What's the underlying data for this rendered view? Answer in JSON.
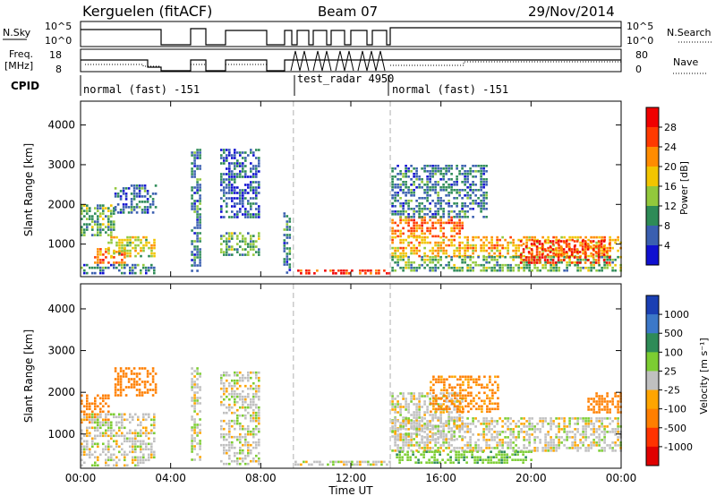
{
  "header": {
    "station": "Kerguelen (fitACF)",
    "beam": "Beam 07",
    "date": "29/Nov/2014"
  },
  "colors": {
    "line": "#000000",
    "frame": "#000000",
    "dashed": "#b0b0b0"
  },
  "nsky_panel": {
    "left_label": "N.Sky",
    "left_ticks": [
      "10^5",
      "10^0"
    ],
    "right_label": "N.Search",
    "right_ticks": [
      "10^5",
      "10^0"
    ]
  },
  "freq_panel": {
    "left_label_line1": "Freq.",
    "left_label_line2": "[MHz]",
    "left_ticks": [
      "18",
      "8"
    ],
    "right_label": "Nave",
    "right_ticks": [
      "80",
      "0"
    ]
  },
  "cpid": {
    "label": "CPID",
    "segments": [
      {
        "start_h": 0.0,
        "end_h": 9.5,
        "text": "normal (fast) -151"
      },
      {
        "start_h": 9.5,
        "end_h": 13.75,
        "text": "test_radar 4950"
      },
      {
        "start_h": 13.75,
        "end_h": 24.0,
        "text": "normal (fast) -151"
      }
    ]
  },
  "power_panel": {
    "ylabel": "Slant Range [km]",
    "yticks": [
      "4000",
      "3000",
      "2000",
      "1000"
    ],
    "colorbar_label": "Power [dB]",
    "colorbar_ticks": [
      "28",
      "24",
      "20",
      "16",
      "12",
      "8",
      "4"
    ],
    "colorbar_colors": [
      "#f00000",
      "#ff3a00",
      "#ff8c00",
      "#f2c500",
      "#92c83c",
      "#2e8b57",
      "#3a5fb0",
      "#1010d0"
    ]
  },
  "velocity_panel": {
    "ylabel": "Slant Range [km]",
    "yticks": [
      "4000",
      "3000",
      "2000",
      "1000"
    ],
    "colorbar_label": "Velocity [m s⁻¹]",
    "colorbar_ticks": [
      "1000",
      "500",
      "100",
      "25",
      "-25",
      "-100",
      "-500",
      "-1000"
    ],
    "colorbar_colors": [
      "#1a3fb3",
      "#3c78c8",
      "#2e8b57",
      "#7ccd32",
      "#c0c0c0",
      "#ffa500",
      "#ff7f00",
      "#ff3300",
      "#e00000"
    ]
  },
  "x_axis": {
    "label": "Time UT",
    "ticks": [
      "00:00",
      "04:00",
      "08:00",
      "12:00",
      "16:00",
      "20:00",
      "00:00"
    ]
  },
  "chart_data": {
    "type": "heatmap",
    "title": "Kerguelen (fitACF) Beam 07 29/Nov/2014",
    "xlabel": "Time UT",
    "ylabel": "Slant Range [km]",
    "xlim_hours": [
      0,
      24
    ],
    "ylim_km": [
      180,
      4600
    ],
    "dashed_lines_hours": [
      9.45,
      13.75
    ],
    "power_echoes": [
      {
        "t0": 0.0,
        "t1": 1.5,
        "r0": 1200,
        "r1": 2000,
        "db": 12
      },
      {
        "t0": 1.5,
        "t1": 3.3,
        "r0": 1800,
        "r1": 2500,
        "db": 8
      },
      {
        "t0": 0.6,
        "t1": 2.0,
        "r0": 550,
        "r1": 900,
        "db": 24
      },
      {
        "t0": 1.2,
        "t1": 3.3,
        "r0": 700,
        "r1": 1200,
        "db": 16
      },
      {
        "t0": 0.0,
        "t1": 3.3,
        "r0": 250,
        "r1": 500,
        "db": 8
      },
      {
        "t0": 4.9,
        "t1": 5.3,
        "r0": 300,
        "r1": 3400,
        "db": 8
      },
      {
        "t0": 6.2,
        "t1": 7.9,
        "r0": 700,
        "r1": 1300,
        "db": 12
      },
      {
        "t0": 6.2,
        "t1": 7.9,
        "r0": 1700,
        "r1": 3400,
        "db": 6
      },
      {
        "t0": 9.0,
        "t1": 9.3,
        "r0": 300,
        "r1": 1800,
        "db": 8
      },
      {
        "t0": 9.5,
        "t1": 13.7,
        "r0": 280,
        "r1": 360,
        "db": 28
      },
      {
        "t0": 13.8,
        "t1": 17.0,
        "r0": 1200,
        "r1": 1700,
        "db": 24
      },
      {
        "t0": 13.8,
        "t1": 24.0,
        "r0": 700,
        "r1": 1200,
        "db": 20
      },
      {
        "t0": 13.8,
        "t1": 24.0,
        "r0": 300,
        "r1": 700,
        "db": 12
      },
      {
        "t0": 13.8,
        "t1": 18.0,
        "r0": 1700,
        "r1": 3000,
        "db": 8
      },
      {
        "t0": 19.5,
        "t1": 23.5,
        "r0": 500,
        "r1": 1100,
        "db": 28
      }
    ],
    "velocity_echoes": [
      {
        "t0": 0.0,
        "t1": 1.3,
        "r0": 1250,
        "r1": 1950,
        "v": -300
      },
      {
        "t0": 1.5,
        "t1": 3.3,
        "r0": 1900,
        "r1": 2600,
        "v": -150
      },
      {
        "t0": 0.0,
        "t1": 3.3,
        "r0": 250,
        "r1": 1500,
        "v": 0
      },
      {
        "t0": 4.9,
        "t1": 5.3,
        "r0": 300,
        "r1": 2600,
        "v": 0
      },
      {
        "t0": 6.2,
        "t1": 7.9,
        "r0": 300,
        "r1": 2500,
        "v": 0
      },
      {
        "t0": 9.5,
        "t1": 13.7,
        "r0": 280,
        "r1": 360,
        "v": 0
      },
      {
        "t0": 13.8,
        "t1": 17.0,
        "r0": 900,
        "r1": 2000,
        "v": 0
      },
      {
        "t0": 13.8,
        "t1": 24.0,
        "r0": 600,
        "r1": 1400,
        "v": 0
      },
      {
        "t0": 14.0,
        "t1": 20.0,
        "r0": 300,
        "r1": 600,
        "v": 80
      },
      {
        "t0": 15.5,
        "t1": 18.5,
        "r0": 1500,
        "r1": 2400,
        "v": -120
      },
      {
        "t0": 22.5,
        "t1": 24.0,
        "r0": 1500,
        "r1": 2000,
        "v": -200
      }
    ]
  }
}
